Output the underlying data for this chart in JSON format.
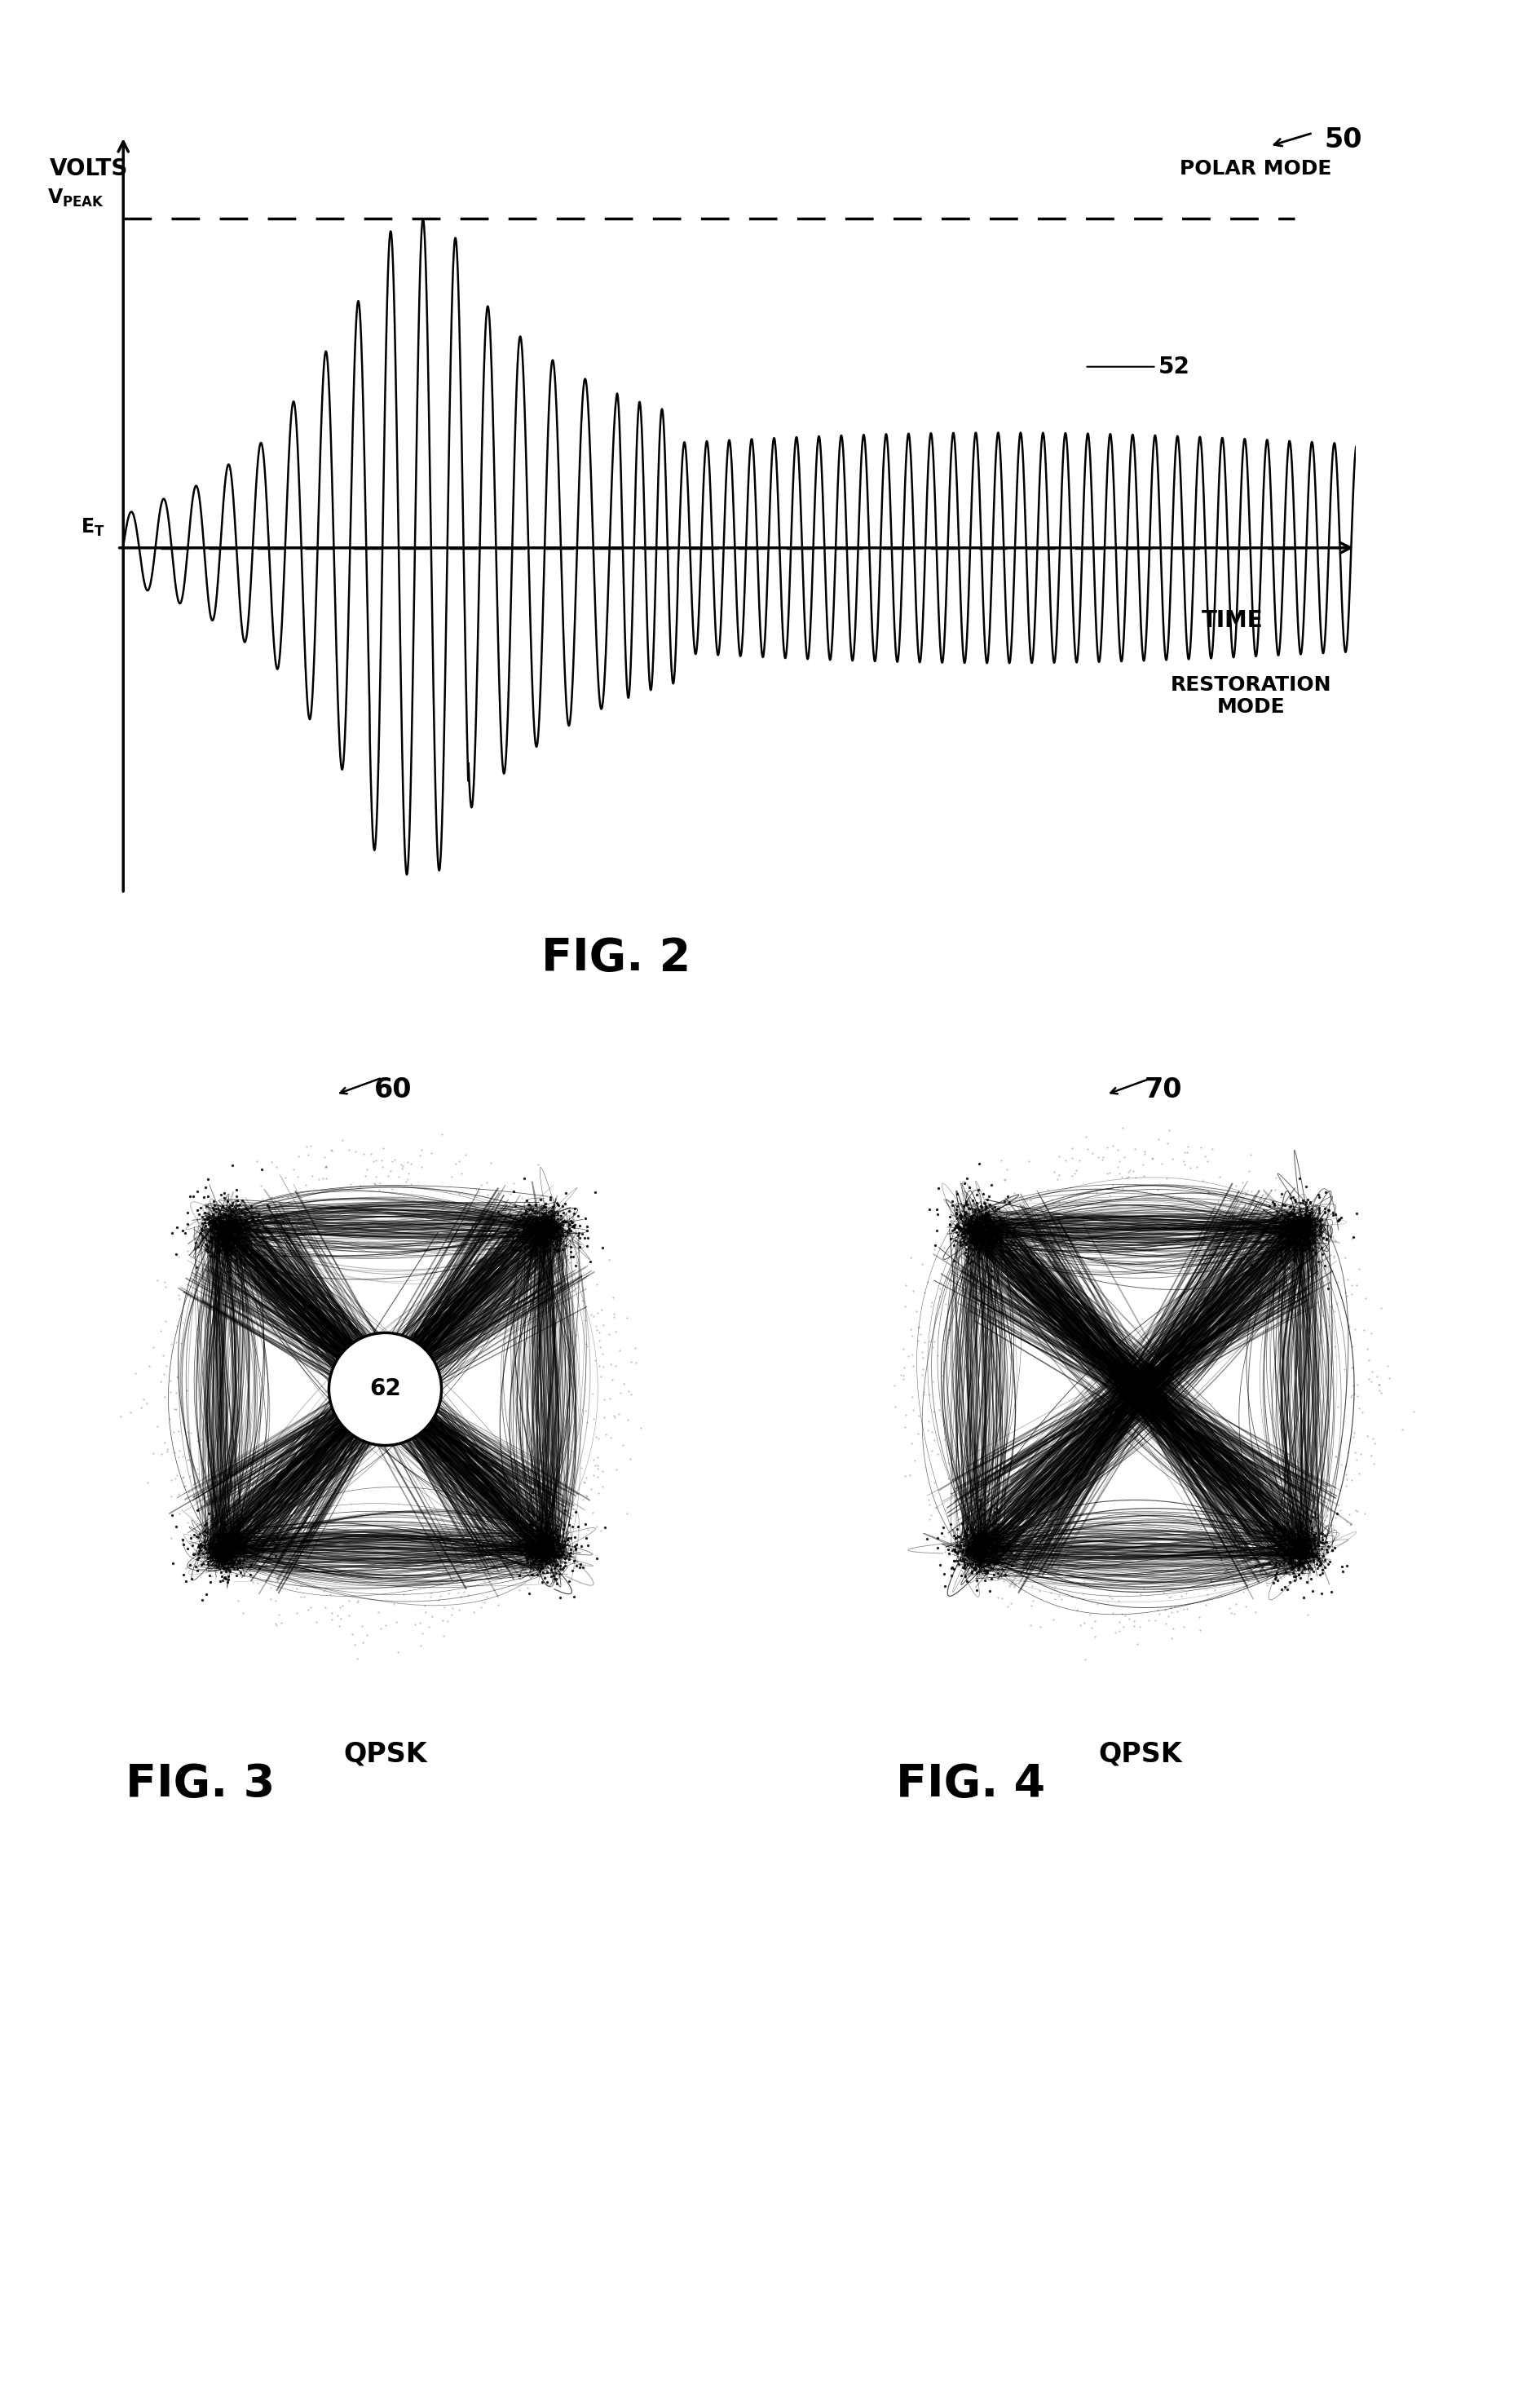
{
  "fig_width": 18.9,
  "fig_height": 29.37,
  "bg_color": "#ffffff",
  "fig2": {
    "title": "FIG. 2",
    "label_50": "50",
    "label_52": "52",
    "volts_label": "VOLTS",
    "time_label": "TIME",
    "polar_mode_label": "POLAR MODE",
    "restoration_mode_label": "RESTORATION\nMODE"
  },
  "fig3": {
    "title": "FIG. 3",
    "label_60": "60",
    "label_62": "62",
    "qpsk_label": "QPSK"
  },
  "fig4": {
    "title": "FIG. 4",
    "label_70": "70",
    "qpsk_label": "QPSK"
  }
}
